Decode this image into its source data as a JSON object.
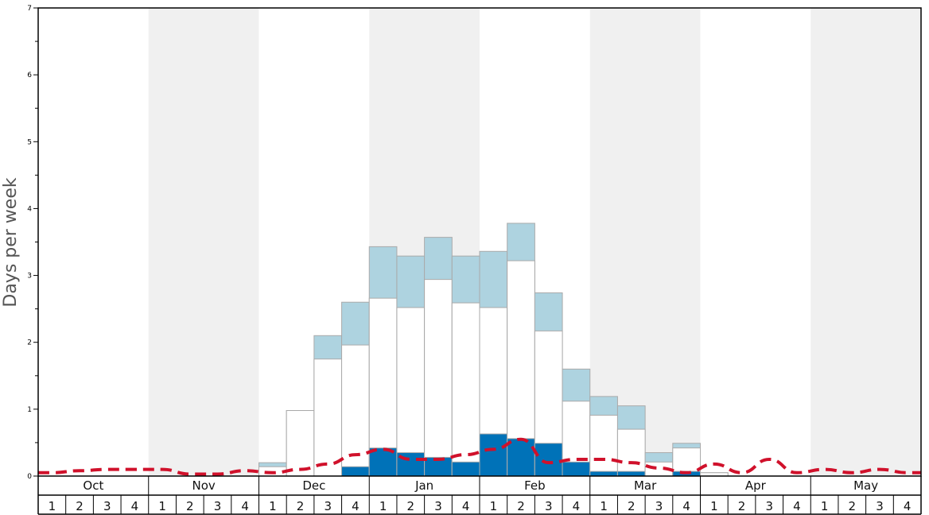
{
  "chart_data": {
    "type": "bar",
    "title": "",
    "xlabel": "",
    "ylabel": "Days per week",
    "ylim": [
      0,
      7
    ],
    "yticks": [
      "0",
      "1",
      "2",
      "3",
      "4",
      "5",
      "6",
      "7"
    ],
    "months": [
      "Oct",
      "Nov",
      "Dec",
      "Jan",
      "Feb",
      "Mar",
      "Apr",
      "May"
    ],
    "week_labels": [
      "1",
      "2",
      "3",
      "4"
    ],
    "shaded_months": [
      "Nov",
      "Jan",
      "Mar",
      "May"
    ],
    "colors": {
      "light_bar": "#aed3e0",
      "white_bar": "#ffffff",
      "dark_bar": "#0072b8",
      "bar_border": "#aaaaaa",
      "shade": "#f0f0f0",
      "dashed_line": "#d0112b"
    },
    "series": [
      {
        "role": "light-blue",
        "values": [
          0,
          0,
          0,
          0,
          0,
          0,
          0,
          0,
          0.2,
          0.98,
          2.1,
          2.6,
          3.43,
          3.29,
          3.57,
          3.29,
          3.36,
          3.78,
          2.74,
          1.6,
          1.19,
          1.05,
          0.35,
          0.49,
          0.05,
          0,
          0,
          0,
          0,
          0,
          0,
          0
        ]
      },
      {
        "role": "white",
        "values": [
          0,
          0,
          0,
          0,
          0,
          0,
          0,
          0,
          0.14,
          0.98,
          1.75,
          1.96,
          2.66,
          2.52,
          2.94,
          2.59,
          2.52,
          3.22,
          2.17,
          1.12,
          0.91,
          0.7,
          0.21,
          0.42,
          0.05,
          0,
          0,
          0,
          0,
          0,
          0,
          0
        ]
      },
      {
        "role": "dark-blue",
        "values": [
          0,
          0,
          0,
          0,
          0,
          0,
          0,
          0,
          0,
          0,
          0,
          0.14,
          0.42,
          0.35,
          0.28,
          0.21,
          0.63,
          0.56,
          0.49,
          0.21,
          0.07,
          0.07,
          0,
          0.07,
          0,
          0,
          0,
          0,
          0,
          0,
          0,
          0
        ]
      },
      {
        "role": "dashed-line",
        "values": [
          0.05,
          0.08,
          0.1,
          0.1,
          0.1,
          0.03,
          0.03,
          0.08,
          0.05,
          0.1,
          0.18,
          0.32,
          0.4,
          0.25,
          0.25,
          0.32,
          0.4,
          0.55,
          0.2,
          0.25,
          0.25,
          0.2,
          0.12,
          0.05,
          0.18,
          0.05,
          0.25,
          0.05,
          0.1,
          0.05,
          0.1,
          0.05
        ]
      }
    ]
  }
}
